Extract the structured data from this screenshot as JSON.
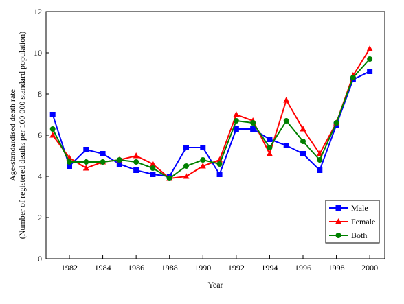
{
  "chart_data": {
    "type": "line",
    "xlabel": "Year",
    "ylabel": "Age-standardised death rate",
    "ylabel_sub": "(Number of registered deaths per 100 000 standard population)",
    "xlim": [
      1980.6,
      2000.9
    ],
    "ylim": [
      0,
      12
    ],
    "x_ticks": [
      1982,
      1984,
      1986,
      1988,
      1990,
      1992,
      1994,
      1996,
      1998,
      2000
    ],
    "y_ticks": [
      0,
      2,
      4,
      6,
      8,
      10,
      12
    ],
    "grid": false,
    "legend_position": "bottom-right",
    "x": [
      1981,
      1982,
      1983,
      1984,
      1985,
      1986,
      1987,
      1988,
      1989,
      1990,
      1991,
      1992,
      1993,
      1994,
      1995,
      1996,
      1997,
      1998,
      1999,
      2000
    ],
    "series": [
      {
        "name": "Male",
        "color": "#0000ff",
        "marker": "square",
        "values": [
          7.0,
          4.5,
          5.3,
          5.1,
          4.6,
          4.3,
          4.1,
          4.0,
          5.4,
          5.4,
          4.1,
          6.3,
          6.3,
          5.8,
          5.5,
          5.1,
          4.3,
          6.5,
          8.7,
          9.1
        ]
      },
      {
        "name": "Female",
        "color": "#ff0000",
        "marker": "triangle",
        "values": [
          6.0,
          4.9,
          4.4,
          4.7,
          4.8,
          5.0,
          4.6,
          3.9,
          4.0,
          4.5,
          4.8,
          7.0,
          6.7,
          5.1,
          7.7,
          6.3,
          5.1,
          6.6,
          8.9,
          10.2
        ]
      },
      {
        "name": "Both",
        "color": "#008000",
        "marker": "circle",
        "values": [
          6.3,
          4.7,
          4.7,
          4.7,
          4.8,
          4.7,
          4.4,
          3.9,
          4.5,
          4.8,
          4.6,
          6.7,
          6.6,
          5.4,
          6.7,
          5.7,
          4.8,
          6.6,
          8.8,
          9.7
        ]
      }
    ]
  }
}
